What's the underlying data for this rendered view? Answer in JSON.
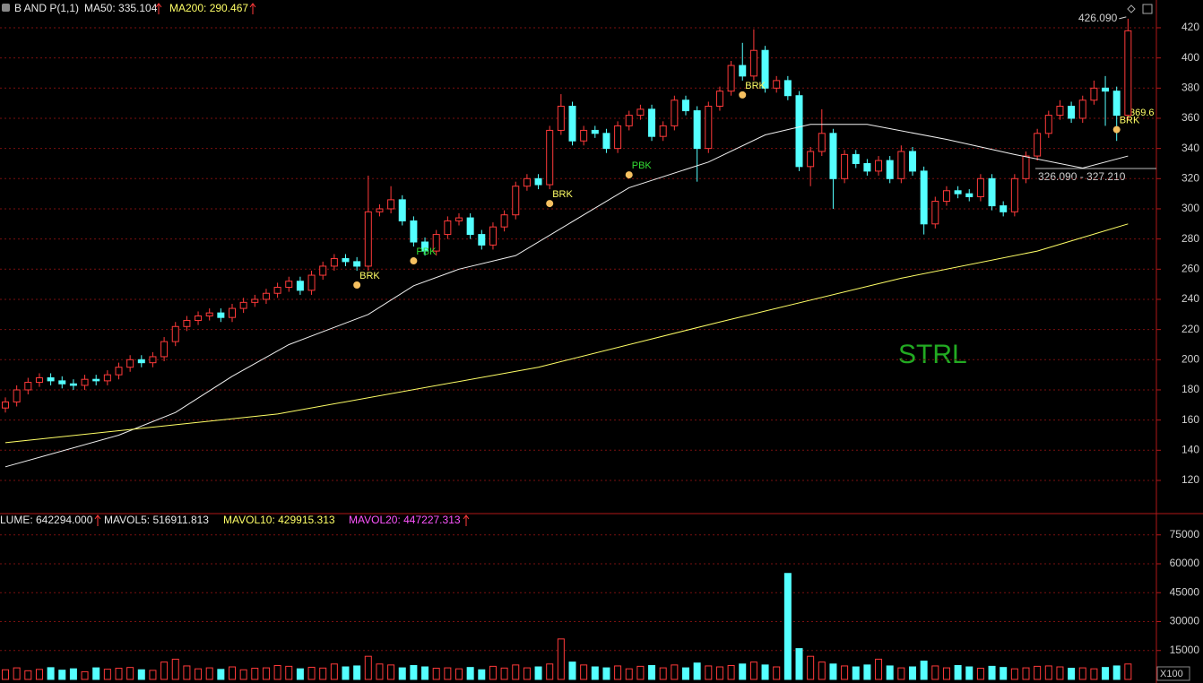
{
  "header": {
    "study": "B AND P(1,1)",
    "ma50": "MA50: 335.104",
    "ma200": "MA200: 290.467"
  },
  "volume_header": {
    "volume": "LUME: 642294.000",
    "mavol5": "MAVOL5: 516911.813",
    "mavol10": "MAVOL10: 429915.313",
    "mavol20": "MAVOL20: 447227.313"
  },
  "chart_data": [
    {
      "type": "candlestick",
      "open": [
        168,
        172,
        180,
        185,
        188,
        186,
        184,
        183,
        187,
        186,
        190,
        195,
        200,
        198,
        202,
        212,
        222,
        226,
        229,
        231,
        228,
        234,
        238,
        240,
        244,
        248,
        252,
        246,
        256,
        262,
        267,
        265,
        262,
        298,
        300,
        306,
        292,
        278,
        272,
        283,
        292,
        294,
        283,
        276,
        288,
        296,
        315,
        320,
        316,
        352,
        368,
        345,
        352,
        350,
        340,
        355,
        362,
        366,
        348,
        355,
        372,
        365,
        340,
        368,
        378,
        395,
        388,
        405,
        380,
        385,
        375,
        328,
        338,
        350,
        320,
        336,
        330,
        325,
        332,
        320,
        338,
        325,
        290,
        305,
        312,
        310,
        308,
        320,
        302,
        298,
        320,
        335,
        350,
        362,
        368,
        360,
        372,
        380,
        378,
        362
      ],
      "high": [
        175,
        183,
        188,
        191,
        191,
        189,
        187,
        190,
        190,
        193,
        198,
        203,
        203,
        205,
        215,
        225,
        229,
        232,
        234,
        234,
        237,
        241,
        243,
        247,
        251,
        255,
        255,
        259,
        265,
        270,
        270,
        268,
        322,
        303,
        315,
        309,
        295,
        281,
        286,
        295,
        297,
        297,
        286,
        291,
        299,
        318,
        323,
        323,
        355,
        376,
        371,
        355,
        355,
        353,
        358,
        365,
        369,
        369,
        358,
        375,
        375,
        368,
        371,
        381,
        398,
        410,
        419,
        408,
        388,
        388,
        378,
        341,
        366,
        353,
        339,
        339,
        333,
        335,
        335,
        342,
        341,
        328,
        308,
        315,
        315,
        313,
        323,
        323,
        305,
        323,
        338,
        353,
        365,
        372,
        371,
        375,
        385,
        388,
        381,
        426
      ],
      "low": [
        165,
        169,
        177,
        182,
        183,
        181,
        180,
        180,
        183,
        183,
        187,
        192,
        195,
        195,
        199,
        209,
        219,
        223,
        226,
        225,
        225,
        231,
        235,
        237,
        241,
        245,
        243,
        243,
        253,
        259,
        262,
        259,
        259,
        295,
        297,
        289,
        275,
        269,
        269,
        280,
        289,
        280,
        273,
        273,
        285,
        293,
        312,
        313,
        313,
        349,
        342,
        342,
        347,
        337,
        337,
        352,
        359,
        345,
        345,
        352,
        362,
        318,
        337,
        365,
        375,
        385,
        385,
        377,
        377,
        372,
        325,
        315,
        335,
        300,
        317,
        327,
        322,
        322,
        317,
        317,
        322,
        283,
        287,
        302,
        307,
        305,
        305,
        299,
        295,
        295,
        317,
        332,
        347,
        359,
        357,
        357,
        369,
        355,
        345,
        359
      ],
      "close": [
        172,
        180,
        185,
        188,
        186,
        184,
        183,
        187,
        186,
        190,
        195,
        200,
        198,
        202,
        212,
        222,
        226,
        229,
        231,
        228,
        234,
        238,
        240,
        244,
        248,
        252,
        246,
        256,
        262,
        267,
        265,
        262,
        298,
        300,
        306,
        292,
        278,
        272,
        283,
        292,
        294,
        283,
        276,
        288,
        296,
        315,
        320,
        316,
        352,
        368,
        345,
        352,
        350,
        340,
        355,
        362,
        366,
        348,
        355,
        372,
        365,
        340,
        368,
        378,
        395,
        388,
        405,
        380,
        385,
        375,
        328,
        338,
        350,
        320,
        336,
        330,
        325,
        332,
        320,
        338,
        325,
        290,
        305,
        312,
        310,
        308,
        320,
        302,
        298,
        320,
        335,
        350,
        362,
        368,
        360,
        372,
        380,
        378,
        362,
        418
      ],
      "up_color": "#ff3a3a",
      "down_color": "#54ffff",
      "ylim": [
        98.6,
        438.4
      ],
      "yticks": [
        120,
        140,
        160,
        180,
        200,
        220,
        240,
        260,
        280,
        300,
        320,
        340,
        360,
        380,
        400,
        420
      ],
      "grid": true,
      "series": [
        {
          "color": "#f0f0f0",
          "x": [
            0,
            10,
            15,
            20,
            25,
            32,
            36,
            40,
            45,
            51,
            55,
            62,
            67,
            71,
            76,
            83,
            89,
            95,
            99
          ],
          "values": [
            129,
            150,
            165,
            189,
            210,
            230,
            249,
            260,
            269,
            296,
            314,
            331,
            349,
            356,
            356,
            346,
            336,
            327,
            335
          ]
        },
        {
          "color": "#ffff66",
          "x": [
            0,
            24,
            47,
            63,
            79,
            91,
            99
          ],
          "values": [
            145,
            164,
            195,
            225,
            254,
            272,
            290
          ]
        }
      ],
      "annotations": [
        {
          "label": "BRK",
          "x": 31,
          "y": 259,
          "color": "#ffff66"
        },
        {
          "label": "PBK",
          "x": 36,
          "y": 275,
          "color": "#33dd33"
        },
        {
          "label": "BRK",
          "x": 48,
          "y": 313,
          "color": "#ffff66"
        },
        {
          "label": "PBK",
          "x": 55,
          "y": 332,
          "color": "#33dd33"
        },
        {
          "label": "BRK",
          "x": 65,
          "y": 385,
          "color": "#ffff66"
        },
        {
          "label": "BRK",
          "x": 98,
          "y": 362,
          "color": "#ffff66"
        }
      ],
      "high_label": "426.090",
      "range_label": "326.090 - 327.210",
      "price_label": "369.6",
      "watermark": "STRL"
    },
    {
      "type": "bar",
      "values": [
        5000,
        6000,
        4500,
        5200,
        6100,
        4800,
        5500,
        4000,
        6000,
        5300,
        5800,
        6200,
        5000,
        4700,
        9000,
        10500,
        7000,
        5500,
        6000,
        5200,
        6500,
        5000,
        5800,
        6000,
        7200,
        6800,
        5500,
        6300,
        5900,
        8000,
        6500,
        7000,
        12000,
        8000,
        7500,
        6000,
        7200,
        6500,
        5800,
        6000,
        5500,
        6200,
        5000,
        6800,
        5900,
        7500,
        6000,
        6500,
        8000,
        21000,
        9000,
        7500,
        6500,
        6000,
        7000,
        5500,
        6800,
        7200,
        6000,
        7500,
        6000,
        8500,
        7000,
        6500,
        7200,
        8000,
        9000,
        7500,
        6500,
        55000,
        16000,
        12000,
        9000,
        8000,
        7000,
        6500,
        7500,
        10500,
        7000,
        6000,
        6500,
        9500,
        7000,
        6000,
        7200,
        6500,
        5800,
        6800,
        6200,
        5500,
        6000,
        6800,
        7000,
        6500,
        5800,
        6000,
        5500,
        6200,
        7000,
        8000
      ],
      "ylim": [
        0,
        84000
      ],
      "yticks": [
        15000,
        30000,
        45000,
        60000,
        75000
      ],
      "grid": true,
      "unit_label": "X100"
    }
  ]
}
